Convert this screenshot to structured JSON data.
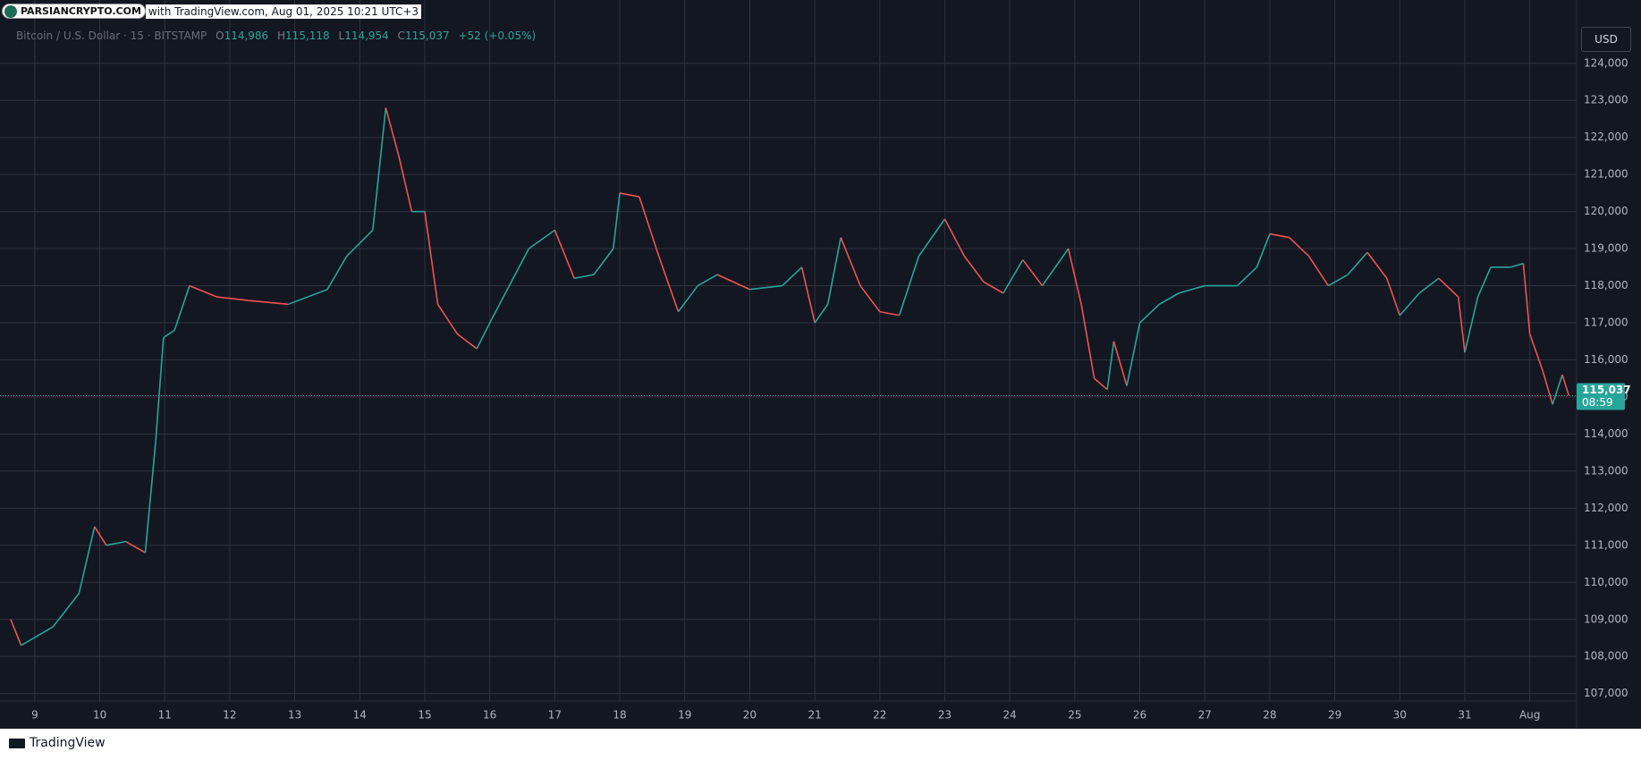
{
  "watermark": {
    "site": "PARSIANCRYPTO.COM",
    "text": "with TradingView.com, Aug 01, 2025 10:21 UTC+3"
  },
  "header": {
    "symbol": "Bitcoin / U.S. Dollar · 15 · BITSTAMP",
    "ohlc": [
      {
        "key": "O",
        "value": "114,986"
      },
      {
        "key": "H",
        "value": "115,118"
      },
      {
        "key": "L",
        "value": "114,954"
      },
      {
        "key": "C",
        "value": "115,037"
      }
    ],
    "change": "+52 (+0.05%)"
  },
  "currency": "USD",
  "countdown": "08:59",
  "footer": "TradingView",
  "chart_data": {
    "type": "line",
    "up_color": "#26a69a",
    "down_color": "#ef5350",
    "grid": true,
    "x": [
      8.63,
      8.79,
      9.28,
      9.68,
      9.92,
      10.1,
      10.4,
      10.7,
      10.86,
      10.98,
      11.15,
      11.38,
      11.8,
      12.3,
      12.9,
      13.5,
      13.8,
      14.2,
      14.4,
      14.6,
      14.8,
      15.0,
      15.2,
      15.5,
      15.8,
      16.0,
      16.3,
      16.6,
      17.0,
      17.3,
      17.6,
      17.9,
      18.0,
      18.3,
      18.6,
      18.9,
      19.2,
      19.5,
      20.0,
      20.5,
      20.8,
      21.0,
      21.2,
      21.4,
      21.7,
      22.0,
      22.3,
      22.6,
      23.0,
      23.3,
      23.6,
      23.9,
      24.2,
      24.5,
      24.9,
      25.1,
      25.3,
      25.5,
      25.6,
      25.8,
      26.0,
      26.3,
      26.6,
      27.0,
      27.5,
      27.8,
      28.0,
      28.3,
      28.6,
      28.9,
      29.2,
      29.5,
      29.8,
      30.0,
      30.3,
      30.6,
      30.9,
      31.0,
      31.2,
      31.4,
      31.7,
      31.9,
      32.0,
      32.2,
      32.35,
      32.5,
      32.6
    ],
    "values": [
      109000,
      108300,
      108800,
      109700,
      111500,
      111000,
      111100,
      110800,
      113800,
      116600,
      116800,
      118000,
      117700,
      117600,
      117500,
      117900,
      118800,
      119500,
      122800,
      121500,
      120000,
      120000,
      117500,
      116700,
      116300,
      117000,
      118000,
      119000,
      119500,
      118200,
      118300,
      119000,
      120500,
      120400,
      118800,
      117300,
      118000,
      118300,
      117900,
      118000,
      118500,
      117000,
      117500,
      119300,
      118000,
      117300,
      117200,
      118800,
      119800,
      118800,
      118100,
      117800,
      118700,
      118000,
      119000,
      117500,
      115500,
      115200,
      116500,
      115300,
      117000,
      117500,
      117800,
      118000,
      118000,
      118500,
      119400,
      119300,
      118800,
      118000,
      118300,
      118900,
      118200,
      117200,
      117800,
      118200,
      117700,
      116200,
      117700,
      118500,
      118500,
      118600,
      116700,
      115700,
      114800,
      115600,
      115037
    ],
    "last_price_label": "115,037",
    "xlim": [
      8.63,
      32.72
    ],
    "xticks": [
      9,
      10,
      11,
      12,
      13,
      14,
      15,
      16,
      17,
      18,
      19,
      20,
      21,
      22,
      23,
      24,
      25,
      26,
      27,
      28,
      29,
      30,
      31,
      {
        "value": 32,
        "label": "Aug"
      }
    ],
    "ylim": [
      106800,
      125080
    ],
    "yticks": [
      {
        "value": 107000,
        "label": "107,000"
      },
      {
        "value": 108000,
        "label": "108,000"
      },
      {
        "value": 109000,
        "label": "109,000"
      },
      {
        "value": 110000,
        "label": "110,000"
      },
      {
        "value": 111000,
        "label": "111,000"
      },
      {
        "value": 112000,
        "label": "112,000"
      },
      {
        "value": 113000,
        "label": "113,000"
      },
      {
        "value": 114000,
        "label": "114,000"
      },
      {
        "value": 115000,
        "label": "115,000"
      },
      {
        "value": 116000,
        "label": "116,000"
      },
      {
        "value": 117000,
        "label": "117,000"
      },
      {
        "value": 118000,
        "label": "118,000"
      },
      {
        "value": 119000,
        "label": "119,000"
      },
      {
        "value": 120000,
        "label": "120,000"
      },
      {
        "value": 121000,
        "label": "121,000"
      },
      {
        "value": 122000,
        "label": "122,000"
      },
      {
        "value": 123000,
        "label": "123,000"
      },
      {
        "value": 124000,
        "label": "124,000"
      }
    ]
  }
}
